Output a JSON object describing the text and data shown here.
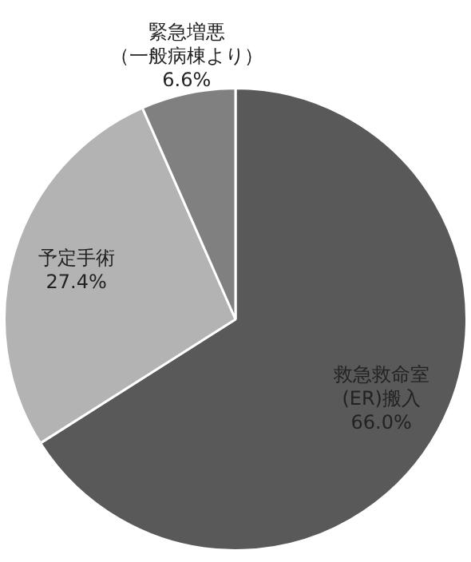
{
  "chart_data": {
    "type": "pie",
    "categories": [
      "救急救命室(ER)搬入",
      "予定手術",
      "緊急増悪（一般病棟より）"
    ],
    "values": [
      66.0,
      27.4,
      6.6
    ],
    "colors": [
      "#595959",
      "#b3b3b3",
      "#808080"
    ],
    "value_labels": [
      "66.0%",
      "27.4%",
      "6.6%"
    ],
    "legend": false
  }
}
